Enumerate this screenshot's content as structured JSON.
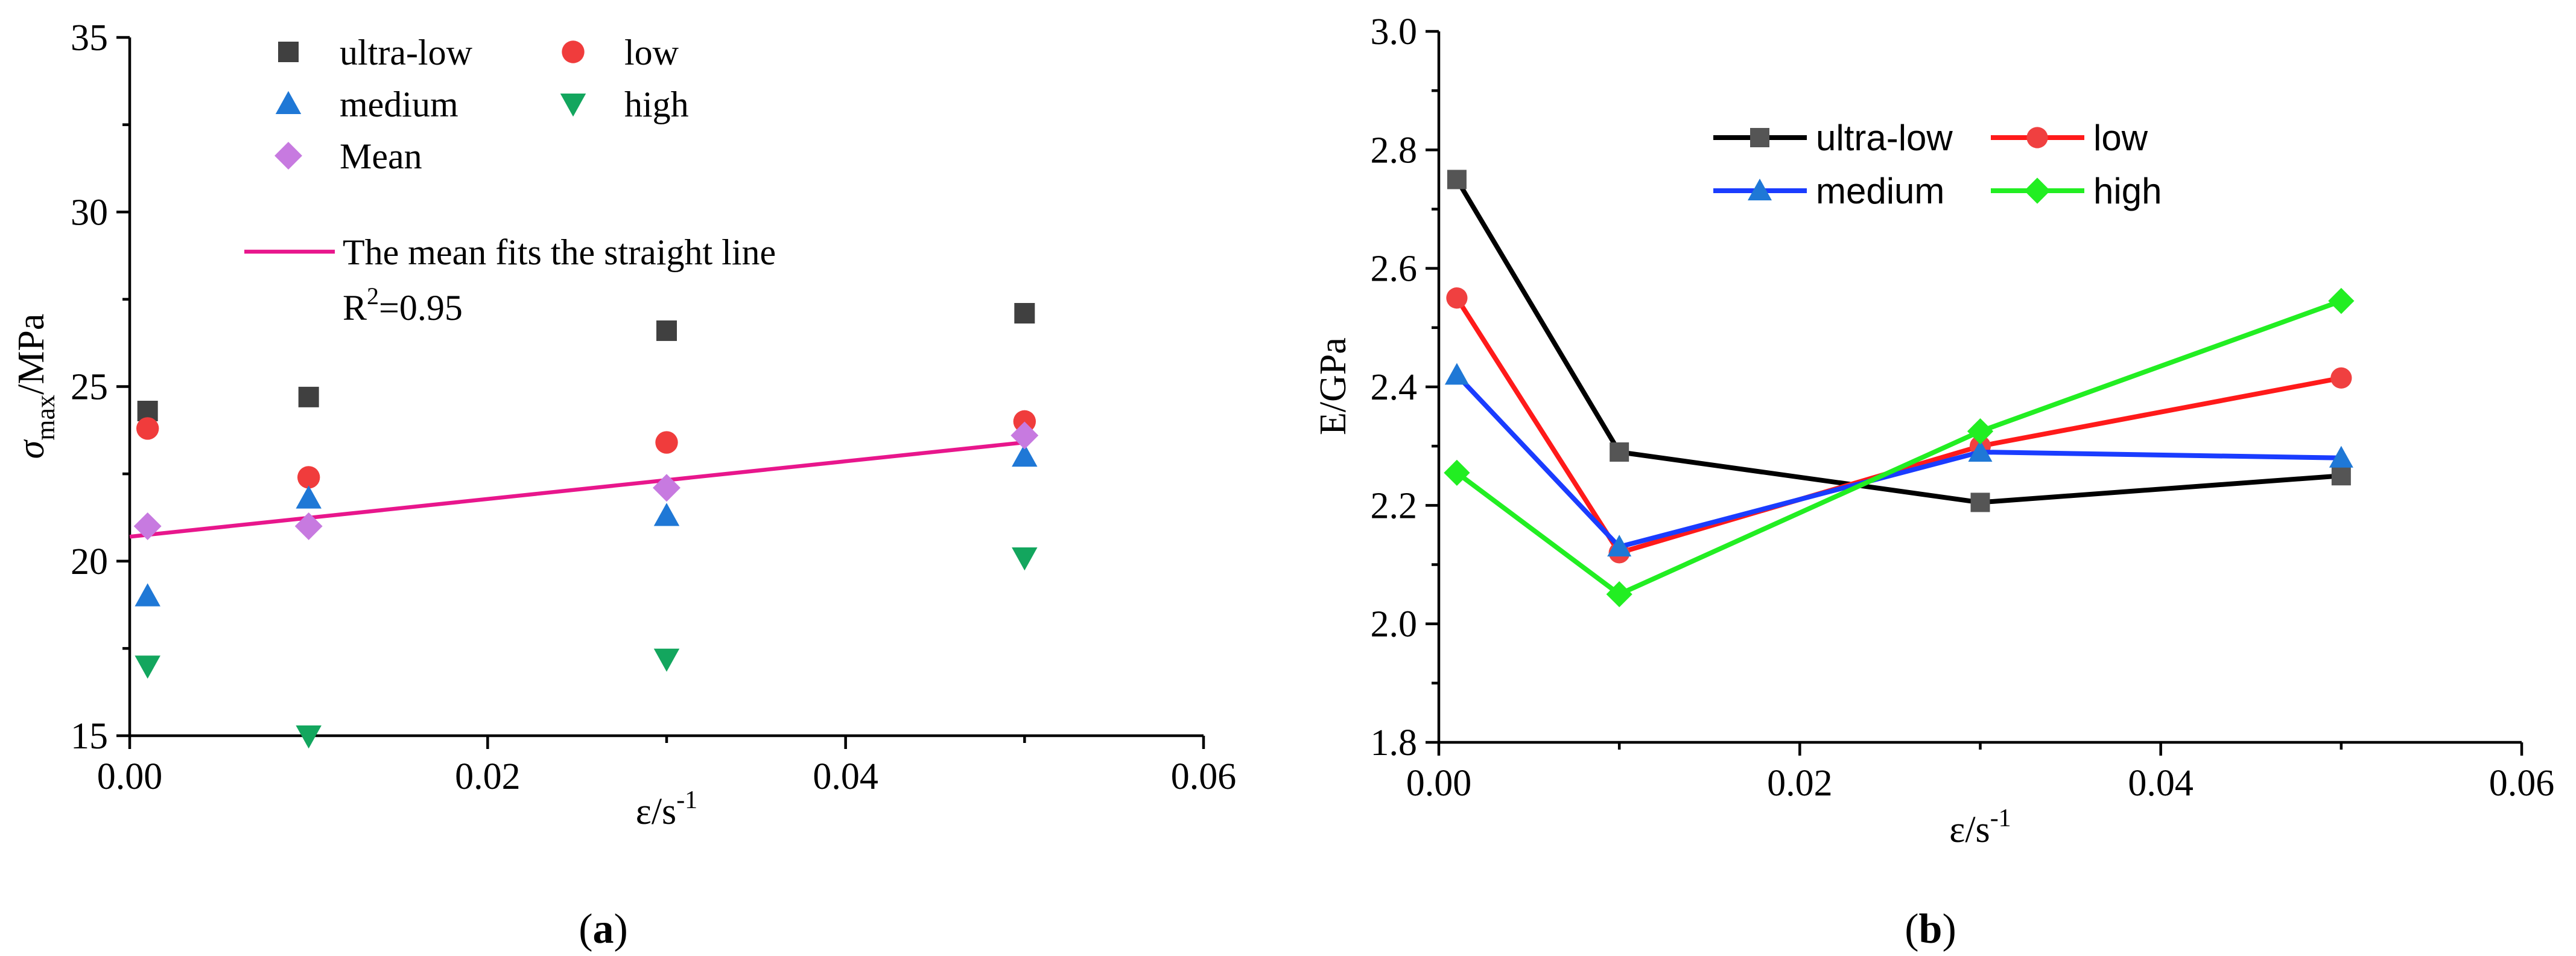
{
  "figure": {
    "panel_labels": [
      "a",
      "b"
    ]
  },
  "chart_data": [
    {
      "type": "scatter",
      "title": "",
      "xlabel": "ε/s",
      "xlabel_sup": "-1",
      "ylabel_sym": "σ",
      "ylabel_sub": "max",
      "ylabel_unit": "/MPa",
      "xlim": [
        0,
        0.06
      ],
      "ylim": [
        15,
        35
      ],
      "xticks": [
        0.0,
        0.02,
        0.04,
        0.06
      ],
      "yticks": [
        15,
        20,
        25,
        30,
        35
      ],
      "xtick_labels": [
        "0.00",
        "0.02",
        "0.04",
        "0.06"
      ],
      "ytick_labels": [
        "15",
        "20",
        "25",
        "30",
        "35"
      ],
      "x": [
        0.001,
        0.01,
        0.03,
        0.05
      ],
      "series": [
        {
          "name": "ultra-low",
          "marker": "square",
          "color": "#404040",
          "values": [
            24.3,
            24.7,
            26.6,
            27.1
          ]
        },
        {
          "name": "low",
          "marker": "circle",
          "color": "#f03c3c",
          "values": [
            23.8,
            22.4,
            23.4,
            24.0
          ]
        },
        {
          "name": "medium",
          "marker": "triangle-up",
          "color": "#1f78d6",
          "values": [
            19.0,
            21.8,
            21.3,
            23.0
          ]
        },
        {
          "name": "high",
          "marker": "triangle-down",
          "color": "#13a65e",
          "values": [
            17.0,
            15.0,
            17.2,
            20.1
          ]
        },
        {
          "name": "Mean",
          "marker": "diamond",
          "color": "#c77ae0",
          "values": [
            21.0,
            21.0,
            22.1,
            23.6
          ]
        }
      ],
      "fit_line": {
        "label": "The mean fits the straight line",
        "r2_prefix": "R",
        "r2_sup": "2",
        "r2_value": "=0.95",
        "color": "#e8168c",
        "x": [
          0.0,
          0.05
        ],
        "y": [
          20.7,
          23.4
        ]
      },
      "legend": "top-left"
    },
    {
      "type": "line",
      "title": "",
      "xlabel": "ε/s",
      "xlabel_sup": "-1",
      "ylabel": "E/GPa",
      "xlim": [
        0,
        0.06
      ],
      "ylim": [
        1.8,
        3.0
      ],
      "xticks": [
        0.0,
        0.02,
        0.04,
        0.06
      ],
      "yticks": [
        1.8,
        2.0,
        2.2,
        2.4,
        2.6,
        2.8,
        3.0
      ],
      "xtick_labels": [
        "0.00",
        "0.02",
        "0.04",
        "0.06"
      ],
      "ytick_labels": [
        "1.8",
        "2.0",
        "2.2",
        "2.4",
        "2.6",
        "2.8",
        "3.0"
      ],
      "x": [
        0.001,
        0.01,
        0.03,
        0.05
      ],
      "series": [
        {
          "name": "ultra-low",
          "marker": "square",
          "color": "#000000",
          "marker_color": "#555555",
          "values": [
            2.75,
            2.29,
            2.205,
            2.25
          ]
        },
        {
          "name": "low",
          "marker": "circle",
          "color": "#ff1a1a",
          "marker_color": "#f04040",
          "values": [
            2.55,
            2.12,
            2.3,
            2.415
          ]
        },
        {
          "name": "medium",
          "marker": "triangle-up",
          "color": "#1a3cff",
          "marker_color": "#1f78d6",
          "values": [
            2.42,
            2.13,
            2.29,
            2.28
          ]
        },
        {
          "name": "high",
          "marker": "diamond",
          "color": "#22ee22",
          "marker_color": "#22ee22",
          "values": [
            2.255,
            2.05,
            2.325,
            2.545
          ]
        }
      ],
      "legend": "top"
    }
  ]
}
